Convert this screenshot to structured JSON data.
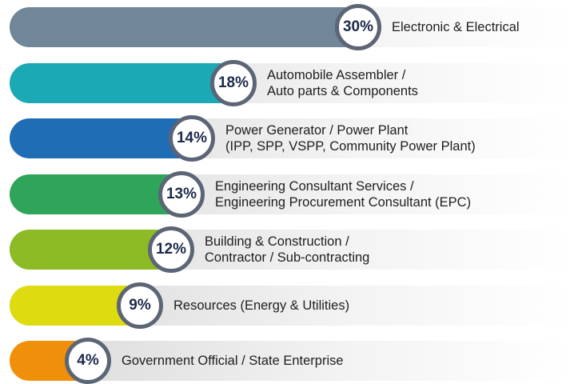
{
  "chart_data": {
    "type": "bar",
    "orientation": "horizontal",
    "categories": [
      "Electronic & Electrical",
      "Automobile Assembler /\nAuto parts & Components",
      "Power Generator / Power Plant\n(IPP, SPP, VSPP, Community Power Plant)",
      "Engineering Consultant Services /\nEngineering Procurement Consultant (EPC)",
      "Building & Construction /\nContractor / Sub-contracting",
      "Resources (Energy & Utilities)",
      "Government Official / State Enterprise"
    ],
    "values": [
      30,
      18,
      14,
      13,
      12,
      9,
      4
    ],
    "value_labels": [
      "30%",
      "18%",
      "14%",
      "13%",
      "12%",
      "9%",
      "4%"
    ],
    "colors": [
      "#6f8799",
      "#1aa9b5",
      "#1f6db5",
      "#2fa55a",
      "#8cbb25",
      "#dedc10",
      "#f0900a"
    ]
  }
}
